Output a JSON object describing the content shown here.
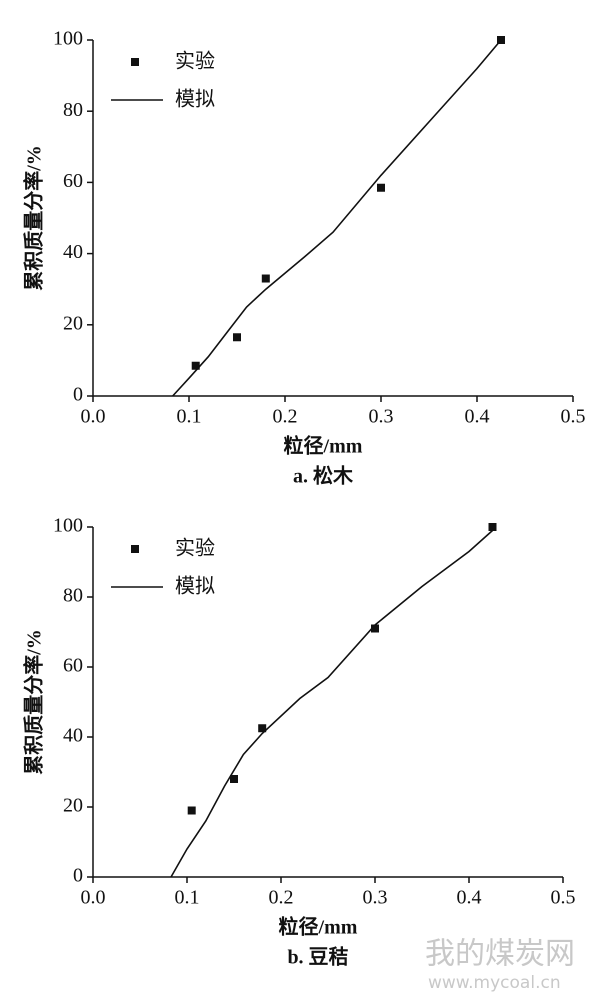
{
  "chart_data": [
    {
      "type": "scatter",
      "caption": "a. 松木",
      "xlabel": "粒径/mm",
      "ylabel": "累积质量分率/%",
      "xlim": [
        0,
        0.5
      ],
      "ylim": [
        0,
        100
      ],
      "xticks": [
        {
          "value": 0,
          "label": "0.0"
        },
        0.1,
        0.2,
        0.3,
        0.4,
        0.5
      ],
      "yticks": [
        0,
        20,
        40,
        60,
        80,
        100
      ],
      "legend": "upper left",
      "series": [
        {
          "name": "实验",
          "mode": "markers",
          "color": "#111111",
          "x": [
            0.107,
            0.15,
            0.18,
            0.3,
            0.425
          ],
          "y": [
            8.5,
            16.5,
            33,
            58.5,
            100
          ]
        },
        {
          "name": "模拟",
          "mode": "lines",
          "color": "#111111",
          "x": [
            0.083,
            0.1,
            0.12,
            0.14,
            0.16,
            0.18,
            0.22,
            0.25,
            0.3,
            0.35,
            0.4,
            0.425
          ],
          "y": [
            0,
            5,
            11,
            18,
            25,
            30,
            39,
            46,
            62,
            77,
            92,
            100
          ]
        }
      ]
    },
    {
      "type": "scatter",
      "caption": "b. 豆秸",
      "xlabel": "粒径/mm",
      "ylabel": "累积质量分率/%",
      "xlim": [
        0,
        0.5
      ],
      "ylim": [
        0,
        100
      ],
      "xticks": [
        {
          "value": 0,
          "label": "0.0"
        },
        0.1,
        0.2,
        0.3,
        0.4,
        0.5
      ],
      "yticks": [
        0,
        20,
        40,
        60,
        80,
        100
      ],
      "legend": "upper left",
      "series": [
        {
          "name": "实验",
          "mode": "markers",
          "color": "#111111",
          "x": [
            0.105,
            0.15,
            0.18,
            0.3,
            0.425
          ],
          "y": [
            19,
            28,
            42.5,
            71,
            100
          ]
        },
        {
          "name": "模拟",
          "mode": "lines",
          "color": "#111111",
          "x": [
            0.083,
            0.1,
            0.12,
            0.14,
            0.16,
            0.18,
            0.22,
            0.25,
            0.3,
            0.35,
            0.4,
            0.425
          ],
          "y": [
            0,
            8,
            16,
            26,
            35,
            41,
            51,
            57,
            72,
            83,
            93,
            99
          ]
        }
      ]
    }
  ],
  "watermark": {
    "name": "我的煤炭网",
    "url": "www.mycoal.cn"
  }
}
